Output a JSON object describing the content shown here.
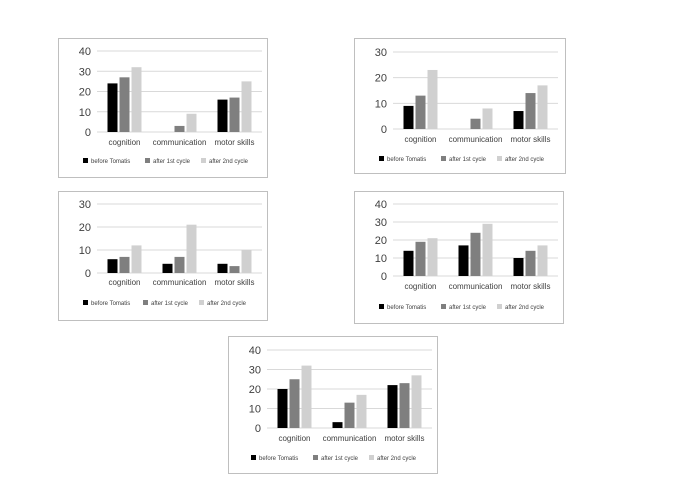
{
  "colors": {
    "before_tomatis": "#000000",
    "after_1st_cycle": "#7f7f7f",
    "after_2nd_cycle": "#d0d0d0",
    "gridline": "#d9d9d9",
    "axis_text": "#404040"
  },
  "chart_data": [
    {
      "type": "bar",
      "categories": [
        "cognition",
        "communication",
        "motor skills"
      ],
      "series": [
        {
          "name": "before Tomatis",
          "values": [
            24,
            0,
            16
          ]
        },
        {
          "name": "after 1st cycle",
          "values": [
            27,
            3,
            17
          ]
        },
        {
          "name": "after 2nd cycle",
          "values": [
            32,
            9,
            25
          ]
        }
      ],
      "yticks": [
        0,
        10,
        20,
        30,
        40
      ],
      "ylim": [
        0,
        40
      ],
      "grid": true,
      "legend_position": "bottom"
    },
    {
      "type": "bar",
      "categories": [
        "cognition",
        "communication",
        "motor skills"
      ],
      "series": [
        {
          "name": "before Tomatis",
          "values": [
            9,
            0,
            7
          ]
        },
        {
          "name": "after 1st cycle",
          "values": [
            13,
            4,
            14
          ]
        },
        {
          "name": "after 2nd cycle",
          "values": [
            23,
            8,
            17
          ]
        }
      ],
      "yticks": [
        0,
        10,
        20,
        30
      ],
      "ylim": [
        0,
        30
      ],
      "grid": true,
      "legend_position": "bottom"
    },
    {
      "type": "bar",
      "categories": [
        "cognition",
        "communication",
        "motor skills"
      ],
      "series": [
        {
          "name": "before Tomatis",
          "values": [
            6,
            4,
            4
          ]
        },
        {
          "name": "after 1st cycle",
          "values": [
            7,
            7,
            3
          ]
        },
        {
          "name": "after 2nd cycle",
          "values": [
            12,
            21,
            10
          ]
        }
      ],
      "yticks": [
        0,
        10,
        20,
        30
      ],
      "ylim": [
        0,
        30
      ],
      "grid": true,
      "legend_position": "bottom"
    },
    {
      "type": "bar",
      "categories": [
        "cognition",
        "communication",
        "motor skills"
      ],
      "series": [
        {
          "name": "before Tomatis",
          "values": [
            14,
            17,
            10
          ]
        },
        {
          "name": "after 1st cycle",
          "values": [
            19,
            24,
            14
          ]
        },
        {
          "name": "after 2nd cycle",
          "values": [
            21,
            29,
            17
          ]
        }
      ],
      "yticks": [
        0,
        10,
        20,
        30,
        40
      ],
      "ylim": [
        0,
        40
      ],
      "grid": true,
      "legend_position": "bottom"
    },
    {
      "type": "bar",
      "categories": [
        "cognition",
        "communication",
        "motor skills"
      ],
      "series": [
        {
          "name": "before Tomatis",
          "values": [
            20,
            3,
            22
          ]
        },
        {
          "name": "after 1st cycle",
          "values": [
            25,
            13,
            23
          ]
        },
        {
          "name": "after 2nd cycle",
          "values": [
            32,
            17,
            27
          ]
        }
      ],
      "yticks": [
        0,
        10,
        20,
        30,
        40
      ],
      "ylim": [
        0,
        40
      ],
      "grid": true,
      "legend_position": "bottom"
    }
  ]
}
